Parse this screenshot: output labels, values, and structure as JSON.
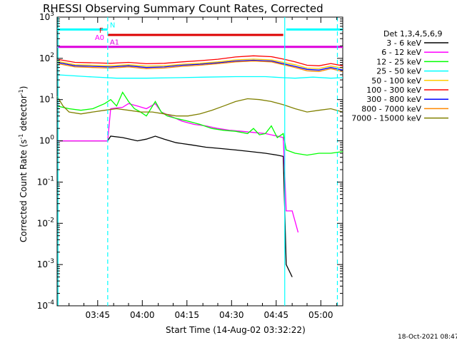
{
  "chart_data": {
    "type": "line",
    "title": "RHESSI Observing Summary Count Rates, Corrected",
    "xlabel": "Start Time (14-Aug-02 03:32:22)",
    "ylabel": "Corrected Count Rate (s⁻¹ detector⁻¹)",
    "ylabel_parts": [
      "Corrected Count Rate (s",
      "-1",
      " detector",
      "-1",
      ")"
    ],
    "timestamp": "18-Oct-2021 08:47",
    "x_range_minutes": [
      0,
      96
    ],
    "x_ticks": [
      {
        "minute": 13.63,
        "label": "03:45"
      },
      {
        "minute": 28.63,
        "label": "04:00"
      },
      {
        "minute": 43.63,
        "label": "04:15"
      },
      {
        "minute": 58.63,
        "label": "04:30"
      },
      {
        "minute": 73.63,
        "label": "04:45"
      },
      {
        "minute": 88.63,
        "label": "05:00"
      }
    ],
    "y_scale": "log",
    "y_range": [
      0.0001,
      1000
    ],
    "y_ticks": [
      {
        "value": 0.0001,
        "base": "10",
        "exp": "-4"
      },
      {
        "value": 0.001,
        "base": "10",
        "exp": "-3"
      },
      {
        "value": 0.01,
        "base": "10",
        "exp": "-2"
      },
      {
        "value": 0.1,
        "base": "10",
        "exp": "-1"
      },
      {
        "value": 1,
        "base": "10",
        "exp": "0"
      },
      {
        "value": 10,
        "base": "10",
        "exp": "1"
      },
      {
        "value": 100,
        "base": "10",
        "exp": "2"
      },
      {
        "value": 1000,
        "base": "10",
        "exp": "3"
      }
    ],
    "legend_header": "Det 1,3,4,5,6,9",
    "legend_position": "right",
    "series": [
      {
        "name": "3 - 6 keV",
        "color": "#000000",
        "points": [
          [
            0,
            1
          ],
          [
            10,
            1
          ],
          [
            17,
            1
          ],
          [
            18,
            1.3
          ],
          [
            22,
            1.2
          ],
          [
            27,
            1
          ],
          [
            30,
            1.1
          ],
          [
            33,
            1.3
          ],
          [
            36,
            1.1
          ],
          [
            40,
            0.9
          ],
          [
            45,
            0.8
          ],
          [
            50,
            0.7
          ],
          [
            55,
            0.65
          ],
          [
            60,
            0.6
          ],
          [
            65,
            0.55
          ],
          [
            70,
            0.5
          ],
          [
            74,
            0.45
          ],
          [
            76,
            0.42
          ],
          [
            77,
            0.001
          ],
          [
            79,
            0.0005
          ]
        ]
      },
      {
        "name": "6 - 12 keV",
        "color": "#ff00ff",
        "points": [
          [
            0,
            1
          ],
          [
            10,
            1
          ],
          [
            17,
            1
          ],
          [
            18,
            6
          ],
          [
            22,
            6.5
          ],
          [
            24,
            8
          ],
          [
            27,
            7
          ],
          [
            30,
            6
          ],
          [
            33,
            8
          ],
          [
            35,
            5
          ],
          [
            38,
            4
          ],
          [
            42,
            3
          ],
          [
            46,
            2.5
          ],
          [
            50,
            2.3
          ],
          [
            54,
            2
          ],
          [
            58,
            1.8
          ],
          [
            62,
            1.7
          ],
          [
            66,
            1.6
          ],
          [
            70,
            1.5
          ],
          [
            74,
            1.3
          ],
          [
            76,
            1.2
          ],
          [
            77,
            0.02
          ],
          [
            79,
            0.02
          ],
          [
            81,
            0.006
          ]
        ]
      },
      {
        "name": "12 - 25 keV",
        "color": "#00ff00",
        "points": [
          [
            0,
            7
          ],
          [
            4,
            6
          ],
          [
            8,
            5.5
          ],
          [
            12,
            6
          ],
          [
            16,
            8
          ],
          [
            18,
            10
          ],
          [
            20,
            7
          ],
          [
            22,
            15
          ],
          [
            24,
            9
          ],
          [
            26,
            6
          ],
          [
            28,
            5
          ],
          [
            30,
            4
          ],
          [
            33,
            9
          ],
          [
            35,
            5
          ],
          [
            37,
            4
          ],
          [
            40,
            3.5
          ],
          [
            44,
            3
          ],
          [
            48,
            2.5
          ],
          [
            52,
            2
          ],
          [
            56,
            1.8
          ],
          [
            60,
            1.7
          ],
          [
            64,
            1.5
          ],
          [
            66,
            2
          ],
          [
            68,
            1.4
          ],
          [
            70,
            1.5
          ],
          [
            72,
            2.3
          ],
          [
            74,
            1.2
          ],
          [
            76,
            1.5
          ],
          [
            77,
            0.6
          ],
          [
            80,
            0.5
          ],
          [
            84,
            0.45
          ],
          [
            88,
            0.5
          ],
          [
            92,
            0.5
          ],
          [
            96,
            0.55
          ]
        ]
      },
      {
        "name": "25 - 50 keV",
        "color": "#00ffff",
        "points": [
          [
            0,
            40
          ],
          [
            10,
            36
          ],
          [
            20,
            33
          ],
          [
            30,
            33
          ],
          [
            40,
            34
          ],
          [
            50,
            35
          ],
          [
            60,
            36
          ],
          [
            70,
            36
          ],
          [
            76,
            34
          ],
          [
            80,
            33
          ],
          [
            86,
            35
          ],
          [
            92,
            33
          ],
          [
            96,
            34
          ]
        ]
      },
      {
        "name": "50 - 100 keV",
        "color": "#ffcc00",
        "points": [
          [
            0,
            85
          ],
          [
            6,
            70
          ],
          [
            12,
            68
          ],
          [
            18,
            66
          ],
          [
            24,
            70
          ],
          [
            30,
            65
          ],
          [
            36,
            66
          ],
          [
            42,
            72
          ],
          [
            48,
            76
          ],
          [
            54,
            82
          ],
          [
            60,
            92
          ],
          [
            66,
            96
          ],
          [
            72,
            92
          ],
          [
            76,
            80
          ],
          [
            80,
            70
          ],
          [
            84,
            58
          ],
          [
            88,
            57
          ],
          [
            92,
            65
          ],
          [
            96,
            58
          ]
        ]
      },
      {
        "name": "100 - 300 keV",
        "color": "#ff0000",
        "points": [
          [
            0,
            95
          ],
          [
            6,
            80
          ],
          [
            12,
            78
          ],
          [
            18,
            76
          ],
          [
            24,
            80
          ],
          [
            30,
            74
          ],
          [
            36,
            76
          ],
          [
            42,
            82
          ],
          [
            48,
            88
          ],
          [
            54,
            95
          ],
          [
            60,
            108
          ],
          [
            66,
            115
          ],
          [
            72,
            110
          ],
          [
            76,
            96
          ],
          [
            80,
            82
          ],
          [
            84,
            68
          ],
          [
            88,
            66
          ],
          [
            92,
            75
          ],
          [
            96,
            66
          ]
        ]
      },
      {
        "name": "300 - 800 keV",
        "color": "#0000ff",
        "points": [
          [
            0,
            80
          ],
          [
            6,
            66
          ],
          [
            12,
            64
          ],
          [
            18,
            62
          ],
          [
            24,
            66
          ],
          [
            30,
            60
          ],
          [
            36,
            62
          ],
          [
            42,
            68
          ],
          [
            48,
            72
          ],
          [
            54,
            78
          ],
          [
            60,
            86
          ],
          [
            66,
            90
          ],
          [
            72,
            86
          ],
          [
            76,
            74
          ],
          [
            80,
            64
          ],
          [
            84,
            54
          ],
          [
            88,
            52
          ],
          [
            92,
            60
          ],
          [
            96,
            52
          ]
        ]
      },
      {
        "name": "800 - 7000 keV",
        "color": "#ff8800",
        "points": [
          [
            0,
            75
          ],
          [
            6,
            62
          ],
          [
            12,
            60
          ],
          [
            18,
            58
          ],
          [
            24,
            62
          ],
          [
            30,
            56
          ],
          [
            36,
            58
          ],
          [
            42,
            64
          ],
          [
            48,
            68
          ],
          [
            54,
            74
          ],
          [
            60,
            82
          ],
          [
            66,
            86
          ],
          [
            72,
            82
          ],
          [
            76,
            70
          ],
          [
            80,
            60
          ],
          [
            84,
            50
          ],
          [
            88,
            48
          ],
          [
            92,
            56
          ],
          [
            96,
            48
          ]
        ]
      },
      {
        "name": "7000 - 15000 keV",
        "color": "#808000",
        "points": [
          [
            0,
            12
          ],
          [
            2,
            7
          ],
          [
            4,
            5
          ],
          [
            8,
            4.5
          ],
          [
            12,
            5
          ],
          [
            16,
            5.5
          ],
          [
            20,
            6
          ],
          [
            24,
            5.5
          ],
          [
            28,
            5
          ],
          [
            32,
            5
          ],
          [
            36,
            4.5
          ],
          [
            40,
            4
          ],
          [
            44,
            4
          ],
          [
            48,
            4.5
          ],
          [
            52,
            5.5
          ],
          [
            56,
            7
          ],
          [
            60,
            9
          ],
          [
            64,
            10.5
          ],
          [
            68,
            10
          ],
          [
            72,
            9
          ],
          [
            76,
            7.5
          ],
          [
            80,
            6
          ],
          [
            84,
            5
          ],
          [
            88,
            5.5
          ],
          [
            92,
            6
          ],
          [
            96,
            5
          ]
        ]
      }
    ],
    "flag_bars": [
      {
        "label": "N",
        "color": "#00ffff",
        "segments": [
          [
            0,
            17
          ],
          [
            77,
            96
          ]
        ],
        "value": 500
      },
      {
        "label": "F",
        "color": "#dd0000",
        "segments": [
          [
            17,
            76
          ]
        ],
        "value": 370
      },
      {
        "label": "A0",
        "color": "#ff00ff",
        "segments": [],
        "value": 250
      },
      {
        "label": "A1",
        "color": "#dd00dd",
        "segments": [
          [
            0,
            96
          ]
        ],
        "value": 190
      }
    ],
    "vlines": [
      {
        "minute": 17,
        "style": "dashed",
        "color": "#00ffff"
      },
      {
        "minute": 76.5,
        "style": "solid",
        "color": "#00ffff"
      },
      {
        "minute": 94.2,
        "style": "dashed",
        "color": "#00ffff"
      },
      {
        "minute": 0.3,
        "style": "solid",
        "color": "#00ffff"
      }
    ]
  }
}
